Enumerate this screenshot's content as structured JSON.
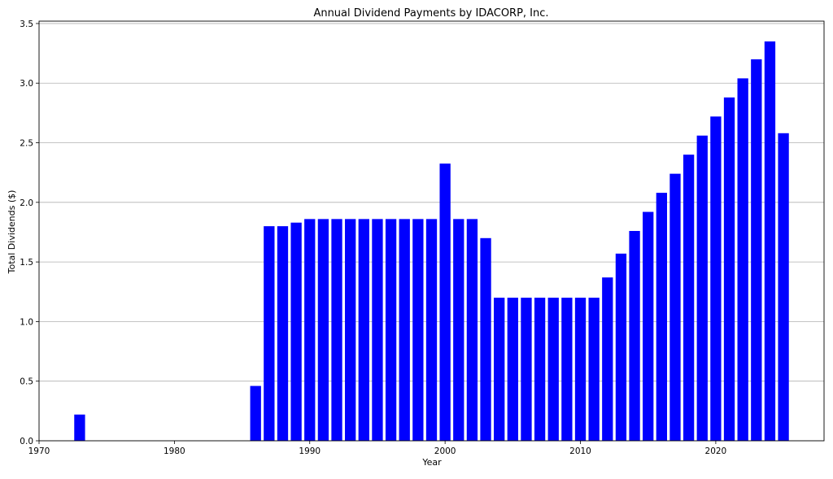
{
  "chart_data": {
    "type": "bar",
    "title": "Annual Dividend Payments by IDACORP, Inc.",
    "xlabel": "Year",
    "ylabel": "Total Dividends ($)",
    "xlim": [
      1970,
      2028
    ],
    "ylim": [
      0,
      3.52
    ],
    "xticks": [
      "1970",
      "1980",
      "1990",
      "2000",
      "2010",
      "2020"
    ],
    "yticks": [
      "0.0",
      "0.5",
      "1.0",
      "1.5",
      "2.0",
      "2.5",
      "3.0",
      "3.5"
    ],
    "grid": "horizontal",
    "bar_color": "#0000ff",
    "x": [
      1973,
      1986,
      1987,
      1988,
      1989,
      1990,
      1991,
      1992,
      1993,
      1994,
      1995,
      1996,
      1997,
      1998,
      1999,
      2000,
      2001,
      2002,
      2003,
      2004,
      2005,
      2006,
      2007,
      2008,
      2009,
      2010,
      2011,
      2012,
      2013,
      2014,
      2015,
      2016,
      2017,
      2018,
      2019,
      2020,
      2021,
      2022,
      2023,
      2024,
      2025
    ],
    "values": [
      0.22,
      0.46,
      1.8,
      1.8,
      1.83,
      1.86,
      1.86,
      1.86,
      1.86,
      1.86,
      1.86,
      1.86,
      1.86,
      1.86,
      1.86,
      2.325,
      1.86,
      1.86,
      1.7,
      1.2,
      1.2,
      1.2,
      1.2,
      1.2,
      1.2,
      1.2,
      1.2,
      1.37,
      1.57,
      1.76,
      1.92,
      2.08,
      2.24,
      2.4,
      2.56,
      2.72,
      2.88,
      3.04,
      3.2,
      3.35,
      2.58
    ]
  }
}
